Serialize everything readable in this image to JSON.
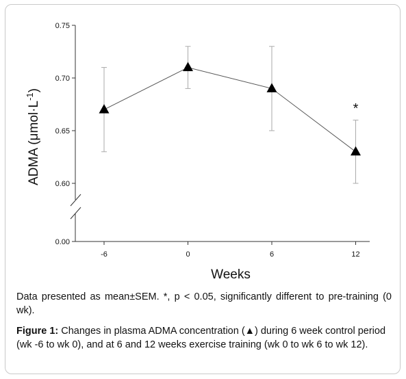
{
  "chart_data": {
    "type": "line",
    "x": [
      -6,
      0,
      6,
      12
    ],
    "x_tick_labels": [
      "-6",
      "0",
      "6",
      "12"
    ],
    "y_tick_labels": [
      "0.00",
      "0.60",
      "0.65",
      "0.70",
      "0.75"
    ],
    "xlabel": "Weeks",
    "ylabel_prefix": "ADMA (μmol·L",
    "ylabel_sup": "-1",
    "ylabel_suffix": ")",
    "ylim": [
      0.6,
      0.75
    ],
    "y_axis_break": true,
    "y_break_baseline": 0.0,
    "series": [
      {
        "marker": "triangle",
        "values": [
          0.67,
          0.71,
          0.69,
          0.63
        ],
        "error": [
          0.04,
          0.02,
          0.04,
          0.03
        ]
      }
    ],
    "annotations": [
      {
        "x": 12,
        "text": "*"
      }
    ],
    "grid": false
  },
  "note": "Data presented as mean±SEM.  *, p < 0.05, significantly different to pre-training (0 wk).",
  "caption": {
    "label": "Figure 1:",
    "text_before": " Changes in plasma ADMA concentration (",
    "symbol": "▲",
    "text_after": ") during 6 week control period (wk -6 to wk 0), and at 6 and 12 weeks exercise training (wk 0 to wk 6 to wk 12)."
  },
  "colors": {
    "line": "#555555",
    "marker": "#000000",
    "error_bar": "#aaaaaa",
    "axis": "#333333"
  }
}
